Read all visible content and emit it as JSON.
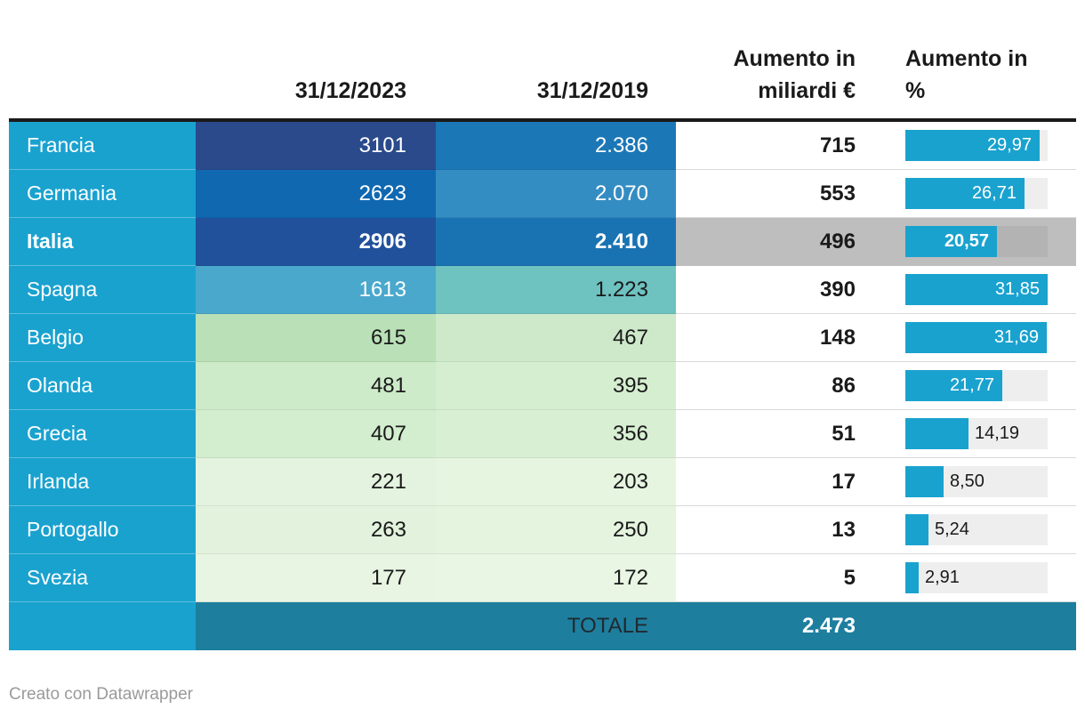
{
  "header": {
    "col_2023": "31/12/2023",
    "col_2019": "31/12/2019",
    "col_abs_l1": "Aumento in",
    "col_abs_l2": "miliardi €",
    "col_pct_l1": "Aumento in",
    "col_pct_l2": "%"
  },
  "table": {
    "bar_max": 31.85,
    "total_label": "TOTALE",
    "total_value": "2.473",
    "rows": [
      {
        "country": "Francia",
        "v2023": "3101",
        "bg2023": "#2a4a8b",
        "fg2023": "#ffffff",
        "v2019": "2.386",
        "bg2019": "#1c77b6",
        "fg2019": "#ffffff",
        "abs": "715",
        "pct_label": "29,97",
        "pct": 29.97,
        "label_inside": true,
        "highlight": false
      },
      {
        "country": "Germania",
        "v2023": "2623",
        "bg2023": "#1068b1",
        "fg2023": "#ffffff",
        "v2019": "2.070",
        "bg2019": "#348dc2",
        "fg2019": "#ffffff",
        "abs": "553",
        "pct_label": "26,71",
        "pct": 26.71,
        "label_inside": true,
        "highlight": false
      },
      {
        "country": "Italia",
        "v2023": "2906",
        "bg2023": "#22519b",
        "fg2023": "#ffffff",
        "v2019": "2.410",
        "bg2019": "#1973b3",
        "fg2019": "#ffffff",
        "abs": "496",
        "pct_label": "20,57",
        "pct": 20.57,
        "label_inside": true,
        "highlight": true
      },
      {
        "country": "Spagna",
        "v2023": "1613",
        "bg2023": "#4aa8cc",
        "fg2023": "#ffffff",
        "v2019": "1.223",
        "bg2019": "#6ec2c0",
        "fg2019": "#1a1a1a",
        "abs": "390",
        "pct_label": "31,85",
        "pct": 31.85,
        "label_inside": true,
        "highlight": false
      },
      {
        "country": "Belgio",
        "v2023": "615",
        "bg2023": "#b9e0b6",
        "fg2023": "#1a1a1a",
        "v2019": "467",
        "bg2019": "#cde9ca",
        "fg2019": "#1a1a1a",
        "abs": "148",
        "pct_label": "31,69",
        "pct": 31.69,
        "label_inside": true,
        "highlight": false
      },
      {
        "country": "Olanda",
        "v2023": "481",
        "bg2023": "#cdeac9",
        "fg2023": "#1a1a1a",
        "v2019": "395",
        "bg2019": "#d5eed0",
        "fg2019": "#1a1a1a",
        "abs": "86",
        "pct_label": "21,77",
        "pct": 21.77,
        "label_inside": true,
        "highlight": false
      },
      {
        "country": "Grecia",
        "v2023": "407",
        "bg2023": "#d3edcf",
        "fg2023": "#1a1a1a",
        "v2019": "356",
        "bg2019": "#d8efd3",
        "fg2019": "#1a1a1a",
        "abs": "51",
        "pct_label": "14,19",
        "pct": 14.19,
        "label_inside": false,
        "highlight": false
      },
      {
        "country": "Irlanda",
        "v2023": "221",
        "bg2023": "#e4f3df",
        "fg2023": "#1a1a1a",
        "v2019": "203",
        "bg2019": "#e6f5e0",
        "fg2019": "#1a1a1a",
        "abs": "17",
        "pct_label": "8,50",
        "pct": 8.5,
        "label_inside": false,
        "highlight": false
      },
      {
        "country": "Portogallo",
        "v2023": "263",
        "bg2023": "#e2f2dd",
        "fg2023": "#1a1a1a",
        "v2019": "250",
        "bg2019": "#e4f4de",
        "fg2019": "#1a1a1a",
        "abs": "13",
        "pct_label": "5,24",
        "pct": 5.24,
        "label_inside": false,
        "highlight": false
      },
      {
        "country": "Svezia",
        "v2023": "177",
        "bg2023": "#e8f5e3",
        "fg2023": "#1a1a1a",
        "v2019": "172",
        "bg2019": "#e9f6e4",
        "fg2019": "#1a1a1a",
        "abs": "5",
        "pct_label": "2,91",
        "pct": 2.91,
        "label_inside": false,
        "highlight": false
      }
    ]
  },
  "colors": {
    "accent_teal": "#1aa2cf",
    "bar": "#1aa2cf",
    "bar_track": "#eeeeee",
    "total_row_bg": "#1e7e9e",
    "highlight_band": "#bebebe",
    "highlight_track": "#b3b3b3",
    "header_text": "#1a1a1a",
    "divider": "#1a1a1a",
    "credit_text": "#9a9a9a"
  },
  "footer": {
    "credit": "Creato con Datawrapper"
  },
  "chart_data": {
    "type": "table",
    "title": "",
    "columns": [
      "",
      "31/12/2023",
      "31/12/2019",
      "Aumento in miliardi €",
      "Aumento in %"
    ],
    "rows": [
      [
        "Francia",
        3101,
        2386,
        715,
        29.97
      ],
      [
        "Germania",
        2623,
        2070,
        553,
        26.71
      ],
      [
        "Italia",
        2906,
        2410,
        496,
        20.57
      ],
      [
        "Spagna",
        1613,
        1223,
        390,
        31.85
      ],
      [
        "Belgio",
        615,
        467,
        148,
        31.69
      ],
      [
        "Olanda",
        481,
        395,
        86,
        21.77
      ],
      [
        "Grecia",
        407,
        356,
        51,
        14.19
      ],
      [
        "Irlanda",
        221,
        203,
        17,
        8.5
      ],
      [
        "Portogallo",
        263,
        250,
        13,
        5.24
      ],
      [
        "Svezia",
        177,
        172,
        5,
        2.91
      ]
    ],
    "total": {
      "label": "TOTALE",
      "aumento_miliardi_eur": 2473
    },
    "highlight_row": "Italia",
    "bar_column": "Aumento in %",
    "bar_axis_max": 31.85,
    "heatmap_columns": [
      "31/12/2023",
      "31/12/2019"
    ]
  }
}
